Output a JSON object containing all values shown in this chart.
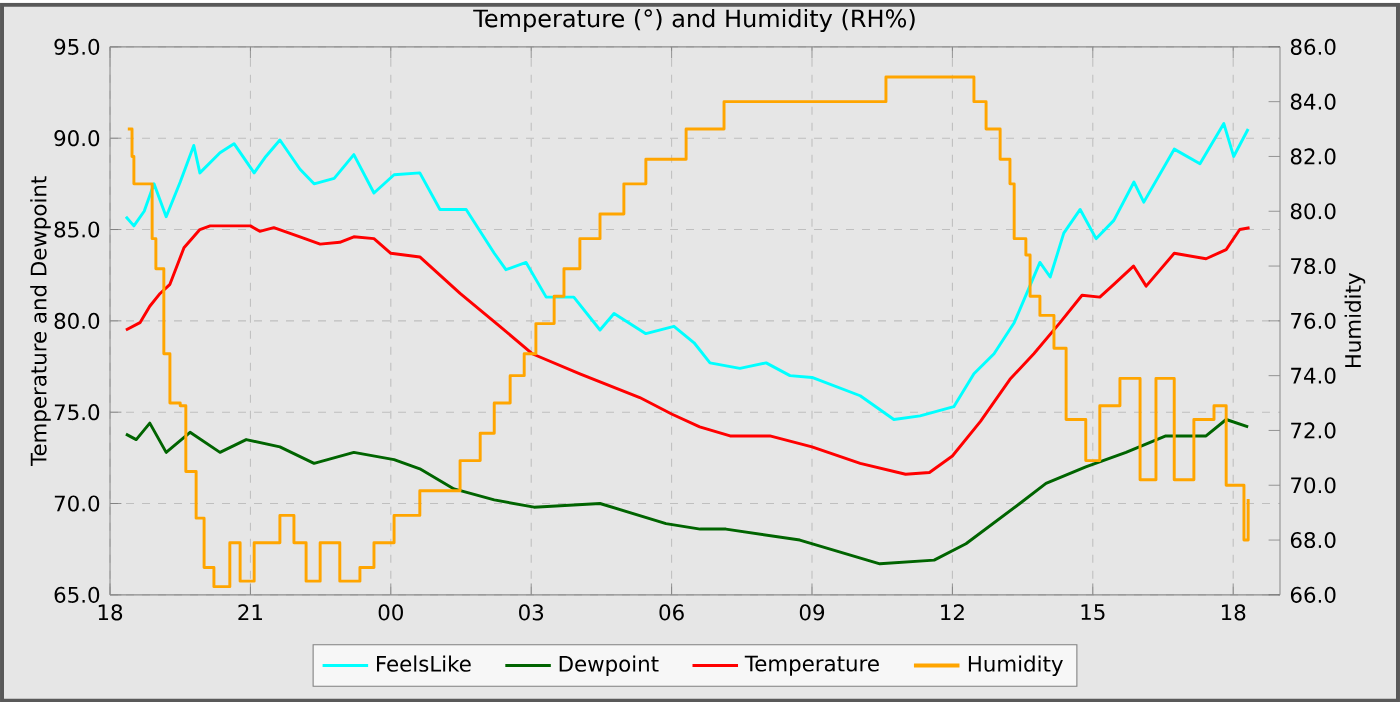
{
  "chart_data": {
    "type": "line",
    "title": "Temperature (°) and Humidity (RH%)",
    "ylabel": "Temperature and Dewpoint",
    "y2label": "Humidity",
    "xlim": [
      18,
      43
    ],
    "xticks": [
      {
        "value": 18,
        "label": "18"
      },
      {
        "value": 21,
        "label": "21"
      },
      {
        "value": 24,
        "label": "00"
      },
      {
        "value": 27,
        "label": "03"
      },
      {
        "value": 30,
        "label": "06"
      },
      {
        "value": 33,
        "label": "09"
      },
      {
        "value": 36,
        "label": "12"
      },
      {
        "value": 39,
        "label": "15"
      },
      {
        "value": 42,
        "label": "18"
      }
    ],
    "ylim": [
      65,
      95
    ],
    "yticks": [
      {
        "value": 65,
        "label": "65.0"
      },
      {
        "value": 70,
        "label": "70.0"
      },
      {
        "value": 75,
        "label": "75.0"
      },
      {
        "value": 80,
        "label": "80.0"
      },
      {
        "value": 85,
        "label": "85.0"
      },
      {
        "value": 90,
        "label": "90.0"
      },
      {
        "value": 95,
        "label": "95.0"
      }
    ],
    "y2lim": [
      66,
      86
    ],
    "y2ticks": [
      {
        "value": 66,
        "label": "66.0"
      },
      {
        "value": 68,
        "label": "68.0"
      },
      {
        "value": 70,
        "label": "70.0"
      },
      {
        "value": 72,
        "label": "72.0"
      },
      {
        "value": 74,
        "label": "74.0"
      },
      {
        "value": 76,
        "label": "76.0"
      },
      {
        "value": 78,
        "label": "78.0"
      },
      {
        "value": 80,
        "label": "80.0"
      },
      {
        "value": 82,
        "label": "82.0"
      },
      {
        "value": 84,
        "label": "84.0"
      },
      {
        "value": 86,
        "label": "86.0"
      }
    ],
    "grid": true,
    "legend": "bottom",
    "series": [
      {
        "name": "FeelsLike",
        "color": "#00ffff",
        "x": [
          18.34,
          18.51,
          18.73,
          18.94,
          19.2,
          19.5,
          19.79,
          19.92,
          20.35,
          20.65,
          21.08,
          21.33,
          21.63,
          22.06,
          22.36,
          22.79,
          23.21,
          23.64,
          24.07,
          24.62,
          25.05,
          25.61,
          26.21,
          26.46,
          26.89,
          27.32,
          27.91,
          28.47,
          28.77,
          29.45,
          30.05,
          30.48,
          30.82,
          31.46,
          32.02,
          32.53,
          33.0,
          34.03,
          34.75,
          35.31,
          36.03,
          36.46,
          36.89,
          37.32,
          37.87,
          38.09,
          38.38,
          38.73,
          39.07,
          39.45,
          39.88,
          40.09,
          40.74,
          41.29,
          41.8,
          42.01,
          42.32
        ],
        "values": [
          85.7,
          85.2,
          86.0,
          87.5,
          85.7,
          87.6,
          89.6,
          88.1,
          89.2,
          89.7,
          88.1,
          89.0,
          89.9,
          88.3,
          87.5,
          87.8,
          89.1,
          87.0,
          88.0,
          88.1,
          86.1,
          86.1,
          83.7,
          82.8,
          83.2,
          81.3,
          81.3,
          79.5,
          80.4,
          79.3,
          79.7,
          78.8,
          77.7,
          77.4,
          77.7,
          77.0,
          76.9,
          75.9,
          74.6,
          74.8,
          75.3,
          77.1,
          78.2,
          79.9,
          83.2,
          82.4,
          84.8,
          86.1,
          84.5,
          85.5,
          87.6,
          86.5,
          89.4,
          88.6,
          90.8,
          89.0,
          90.5
        ]
      },
      {
        "name": "Dewpoint",
        "color": "#006400",
        "x": [
          18.34,
          18.56,
          18.85,
          19.2,
          19.71,
          20.35,
          20.91,
          21.63,
          22.36,
          23.21,
          24.07,
          24.62,
          25.35,
          26.21,
          27.06,
          28.47,
          29.88,
          30.61,
          31.16,
          32.74,
          34.45,
          35.61,
          36.29,
          37.44,
          38.0,
          38.85,
          39.71,
          40.56,
          41.42,
          41.85,
          42.32
        ],
        "values": [
          73.8,
          73.5,
          74.4,
          72.8,
          73.9,
          72.8,
          73.5,
          73.1,
          72.2,
          72.8,
          72.4,
          71.9,
          70.8,
          70.2,
          69.8,
          70.0,
          68.9,
          68.6,
          68.6,
          68.0,
          66.7,
          66.9,
          67.8,
          70.0,
          71.1,
          72.0,
          72.8,
          73.7,
          73.7,
          74.6,
          74.2
        ]
      },
      {
        "name": "Temperature",
        "color": "#ff0000",
        "x": [
          18.34,
          18.64,
          18.85,
          19.07,
          19.28,
          19.58,
          19.92,
          20.14,
          21.0,
          21.2,
          21.5,
          22.06,
          22.49,
          22.91,
          23.21,
          23.64,
          24.0,
          24.62,
          25.48,
          26.33,
          27.02,
          28.04,
          29.32,
          30.0,
          30.6,
          31.25,
          32.1,
          33.0,
          34.03,
          35.0,
          35.51,
          36.0,
          36.6,
          37.23,
          37.74,
          38.3,
          38.77,
          39.15,
          39.45,
          39.87,
          40.14,
          40.74,
          41.42,
          41.85,
          42.14,
          42.35
        ],
        "values": [
          79.5,
          79.9,
          80.8,
          81.5,
          82.0,
          84.0,
          85.0,
          85.2,
          85.2,
          84.9,
          85.1,
          84.6,
          84.2,
          84.3,
          84.6,
          84.5,
          83.7,
          83.5,
          81.5,
          79.7,
          78.2,
          77.1,
          75.8,
          74.9,
          74.2,
          73.7,
          73.7,
          73.1,
          72.2,
          71.6,
          71.7,
          72.6,
          74.5,
          76.8,
          78.2,
          79.9,
          81.4,
          81.3,
          82.0,
          83.0,
          81.9,
          83.7,
          83.4,
          83.9,
          85.0,
          85.1
        ]
      },
      {
        "name": "Humidity",
        "color": "#ffa500",
        "type": "step",
        "axis": "y2",
        "x": [
          18.38,
          18.47,
          18.51,
          18.77,
          18.9,
          18.98,
          19.15,
          19.28,
          19.5,
          19.62,
          19.84,
          20.01,
          20.22,
          20.56,
          20.78,
          21.08,
          21.33,
          21.63,
          21.93,
          22.19,
          22.49,
          22.91,
          23.34,
          23.64,
          23.9,
          24.07,
          24.62,
          25.48,
          25.91,
          26.21,
          26.55,
          26.85,
          27.1,
          27.49,
          27.7,
          28.04,
          28.47,
          28.98,
          29.45,
          30.31,
          31.12,
          34.58,
          36.03,
          36.46,
          36.72,
          37.02,
          37.23,
          37.32,
          37.57,
          37.66,
          37.87,
          38.17,
          38.43,
          38.85,
          39.15,
          39.58,
          40.01,
          40.35,
          40.74,
          41.16,
          41.59,
          41.85,
          42.23,
          42.32
        ],
        "values": [
          83.0,
          82.0,
          81.0,
          81.0,
          79.0,
          77.9,
          74.8,
          73.0,
          72.9,
          70.5,
          68.8,
          67.0,
          66.3,
          67.9,
          66.5,
          67.9,
          67.9,
          68.9,
          67.9,
          66.5,
          67.9,
          66.5,
          67.0,
          67.9,
          67.9,
          68.9,
          69.8,
          70.9,
          71.9,
          73.0,
          74.0,
          74.8,
          75.9,
          76.9,
          77.9,
          79.0,
          79.9,
          81.0,
          81.9,
          83.0,
          84.0,
          84.9,
          84.9,
          84.0,
          83.0,
          81.9,
          81.0,
          79.0,
          78.4,
          76.9,
          76.2,
          75.0,
          72.4,
          70.9,
          72.9,
          73.9,
          70.2,
          73.9,
          70.2,
          72.4,
          72.9,
          70.0,
          68.0,
          69.5
        ]
      }
    ]
  }
}
